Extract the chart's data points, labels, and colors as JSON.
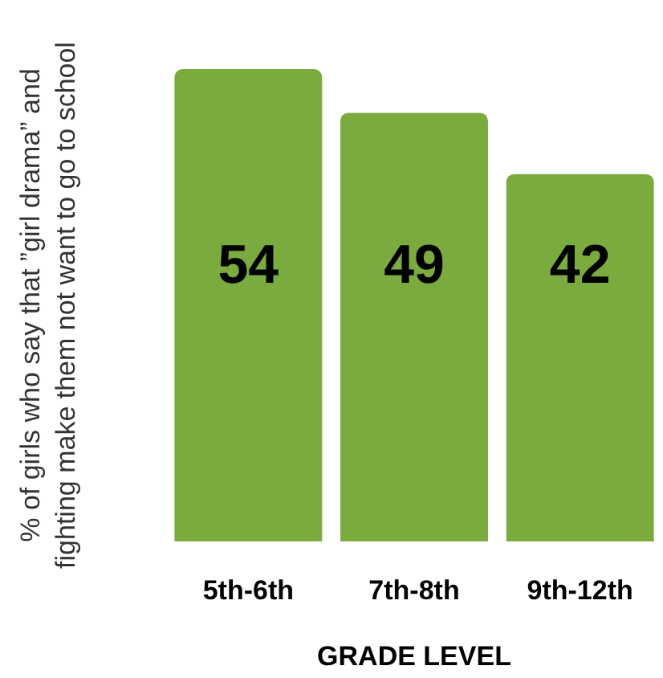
{
  "chart_data": {
    "type": "bar",
    "xlabel": "GRADE LEVEL",
    "ylabel": "% of girls who say that ”girl drama” and\nfighting make them not want to go to school",
    "categories": [
      "5th-6th",
      "7th-8th",
      "9th-12th"
    ],
    "values": [
      54,
      49,
      42
    ],
    "color": "#7bab3f",
    "data_labels": true,
    "tick_labels": "x"
  }
}
